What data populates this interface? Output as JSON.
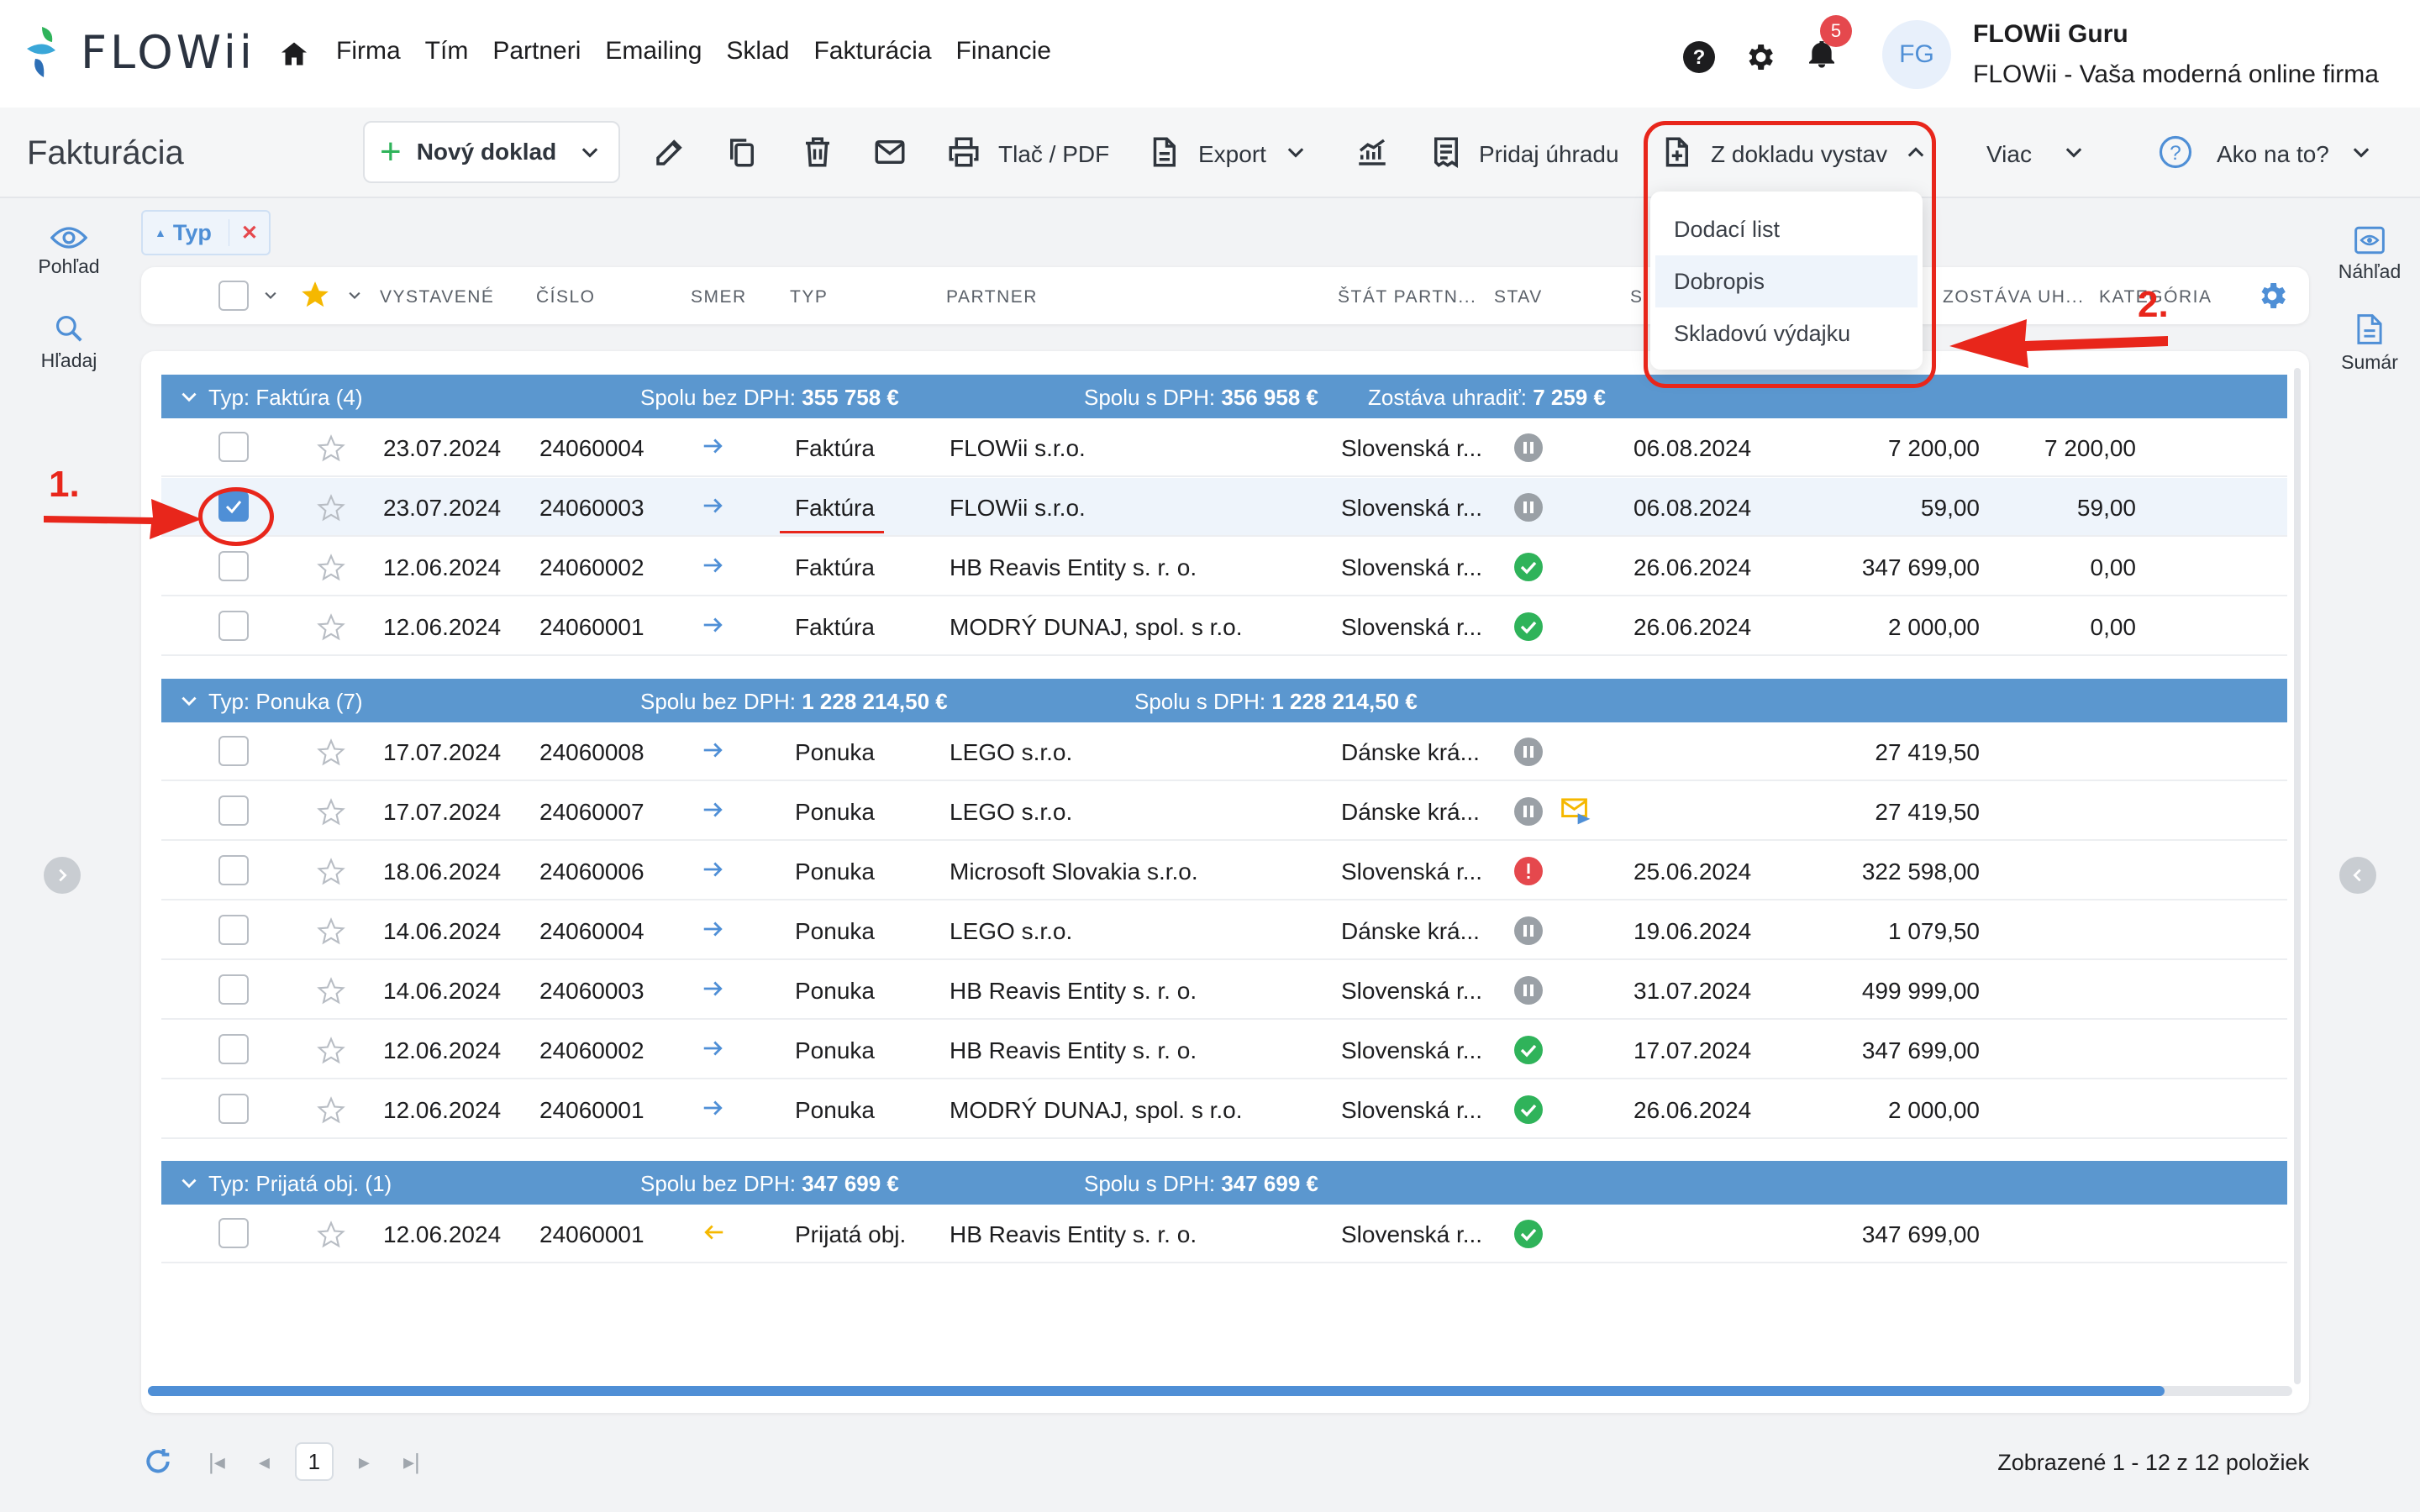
{
  "app": {
    "logo_text": "FLOWii",
    "menu": [
      "Firma",
      "Tím",
      "Partneri",
      "Emailing",
      "Sklad",
      "Fakturácia",
      "Financie"
    ],
    "notifications_count": "5",
    "avatar_initials": "FG",
    "user_name": "FLOWii Guru",
    "user_company": "FLOWii - Vaša moderná online firma"
  },
  "toolbar": {
    "page_title": "Fakturácia",
    "new_doc": "Nový doklad",
    "print_pdf": "Tlač / PDF",
    "export": "Export",
    "add_payment": "Pridaj úhradu",
    "from_doc": "Z dokladu vystav",
    "more": "Viac",
    "how_to": "Ako na to?"
  },
  "dropdown": {
    "items": [
      "Dodací list",
      "Dobropis",
      "Skladovú výdajku"
    ]
  },
  "side_left": {
    "view": "Pohľad",
    "search": "Hľadaj"
  },
  "side_right": {
    "preview": "Náhľad",
    "summary": "Sumár"
  },
  "filter_chip": {
    "label": "Typ"
  },
  "columns": [
    "VYSTAVENÉ",
    "ČÍSLO",
    "SMER",
    "TYP",
    "PARTNER",
    "ŠTÁT PARTN...",
    "STAV",
    "S",
    "ZOSTÁVA UH...",
    "KATEGÓRIA"
  ],
  "groups": [
    {
      "title": "Typ: Faktúra (4)",
      "sum_no_vat_label": "Spolu bez DPH:",
      "sum_no_vat": "355 758 €",
      "sum_vat_label": "Spolu s DPH:",
      "sum_vat": "356 958 €",
      "remaining_label": "Zostáva uhradiť:",
      "remaining": "7 259 €",
      "rows": [
        {
          "date": "23.07.2024",
          "number": "24060004",
          "dir": "out",
          "type": "Faktúra",
          "partner": "FLOWii s.r.o.",
          "country": "Slovenská r...",
          "status": "gray",
          "due": "06.08.2024",
          "amount": "7 200,00",
          "remaining": "7 200,00",
          "selected": false
        },
        {
          "date": "23.07.2024",
          "number": "24060003",
          "dir": "out",
          "type": "Faktúra",
          "partner": "FLOWii s.r.o.",
          "country": "Slovenská r...",
          "status": "gray",
          "due": "06.08.2024",
          "amount": "59,00",
          "remaining": "59,00",
          "selected": true
        },
        {
          "date": "12.06.2024",
          "number": "24060002",
          "dir": "out",
          "type": "Faktúra",
          "partner": "HB Reavis Entity s. r. o.",
          "country": "Slovenská r...",
          "status": "green",
          "due": "26.06.2024",
          "amount": "347 699,00",
          "remaining": "0,00",
          "selected": false
        },
        {
          "date": "12.06.2024",
          "number": "24060001",
          "dir": "out",
          "type": "Faktúra",
          "partner": "MODRÝ DUNAJ, spol. s r.o.",
          "country": "Slovenská r...",
          "status": "green",
          "due": "26.06.2024",
          "amount": "2 000,00",
          "remaining": "0,00",
          "selected": false
        }
      ]
    },
    {
      "title": "Typ: Ponuka (7)",
      "sum_no_vat_label": "Spolu bez DPH:",
      "sum_no_vat": "1 228 214,50 €",
      "sum_vat_label": "Spolu s DPH:",
      "sum_vat": "1 228 214,50 €",
      "rows": [
        {
          "date": "17.07.2024",
          "number": "24060008",
          "dir": "out",
          "type": "Ponuka",
          "partner": "LEGO s.r.o.",
          "country": "Dánske krá...",
          "status": "gray",
          "due": "",
          "amount": "27 419,50",
          "remaining": "",
          "selected": false
        },
        {
          "date": "17.07.2024",
          "number": "24060007",
          "dir": "out",
          "type": "Ponuka",
          "partner": "LEGO s.r.o.",
          "country": "Dánske krá...",
          "status": "gray",
          "mail": true,
          "due": "",
          "amount": "27 419,50",
          "remaining": "",
          "selected": false
        },
        {
          "date": "18.06.2024",
          "number": "24060006",
          "dir": "out",
          "type": "Ponuka",
          "partner": "Microsoft Slovakia s.r.o.",
          "country": "Slovenská r...",
          "status": "red",
          "due": "25.06.2024",
          "amount": "322 598,00",
          "remaining": "",
          "selected": false
        },
        {
          "date": "14.06.2024",
          "number": "24060004",
          "dir": "out",
          "type": "Ponuka",
          "partner": "LEGO s.r.o.",
          "country": "Dánske krá...",
          "status": "gray",
          "due": "19.06.2024",
          "amount": "1 079,50",
          "remaining": "",
          "selected": false
        },
        {
          "date": "14.06.2024",
          "number": "24060003",
          "dir": "out",
          "type": "Ponuka",
          "partner": "HB Reavis Entity s. r. o.",
          "country": "Slovenská r...",
          "status": "gray",
          "due": "31.07.2024",
          "amount": "499 999,00",
          "remaining": "",
          "selected": false
        },
        {
          "date": "12.06.2024",
          "number": "24060002",
          "dir": "out",
          "type": "Ponuka",
          "partner": "HB Reavis Entity s. r. o.",
          "country": "Slovenská r...",
          "status": "green",
          "due": "17.07.2024",
          "amount": "347 699,00",
          "remaining": "",
          "selected": false
        },
        {
          "date": "12.06.2024",
          "number": "24060001",
          "dir": "out",
          "type": "Ponuka",
          "partner": "MODRÝ DUNAJ, spol. s r.o.",
          "country": "Slovenská r...",
          "status": "green",
          "due": "26.06.2024",
          "amount": "2 000,00",
          "remaining": "",
          "selected": false
        }
      ]
    },
    {
      "title": "Typ: Prijatá obj. (1)",
      "sum_no_vat_label": "Spolu bez DPH:",
      "sum_no_vat": "347 699 €",
      "sum_vat_label": "Spolu s DPH:",
      "sum_vat": "347 699 €",
      "rows": [
        {
          "date": "12.06.2024",
          "number": "24060001",
          "dir": "in",
          "type": "Prijatá obj.",
          "partner": "HB Reavis Entity s. r. o.",
          "country": "Slovenská r...",
          "status": "green",
          "due": "",
          "amount": "347 699,00",
          "remaining": "",
          "selected": false
        }
      ]
    }
  ],
  "pager": {
    "current_page": "1",
    "info": "Zobrazené 1 - 12 z 12 položiek"
  },
  "annotations": {
    "step1": "1.",
    "step2": "2."
  },
  "colors": {
    "accent": "#4f8fd6",
    "group_bar": "#5b97cf",
    "annotation": "#e8261b",
    "ok": "#2fb35a",
    "error": "#e5484d"
  }
}
